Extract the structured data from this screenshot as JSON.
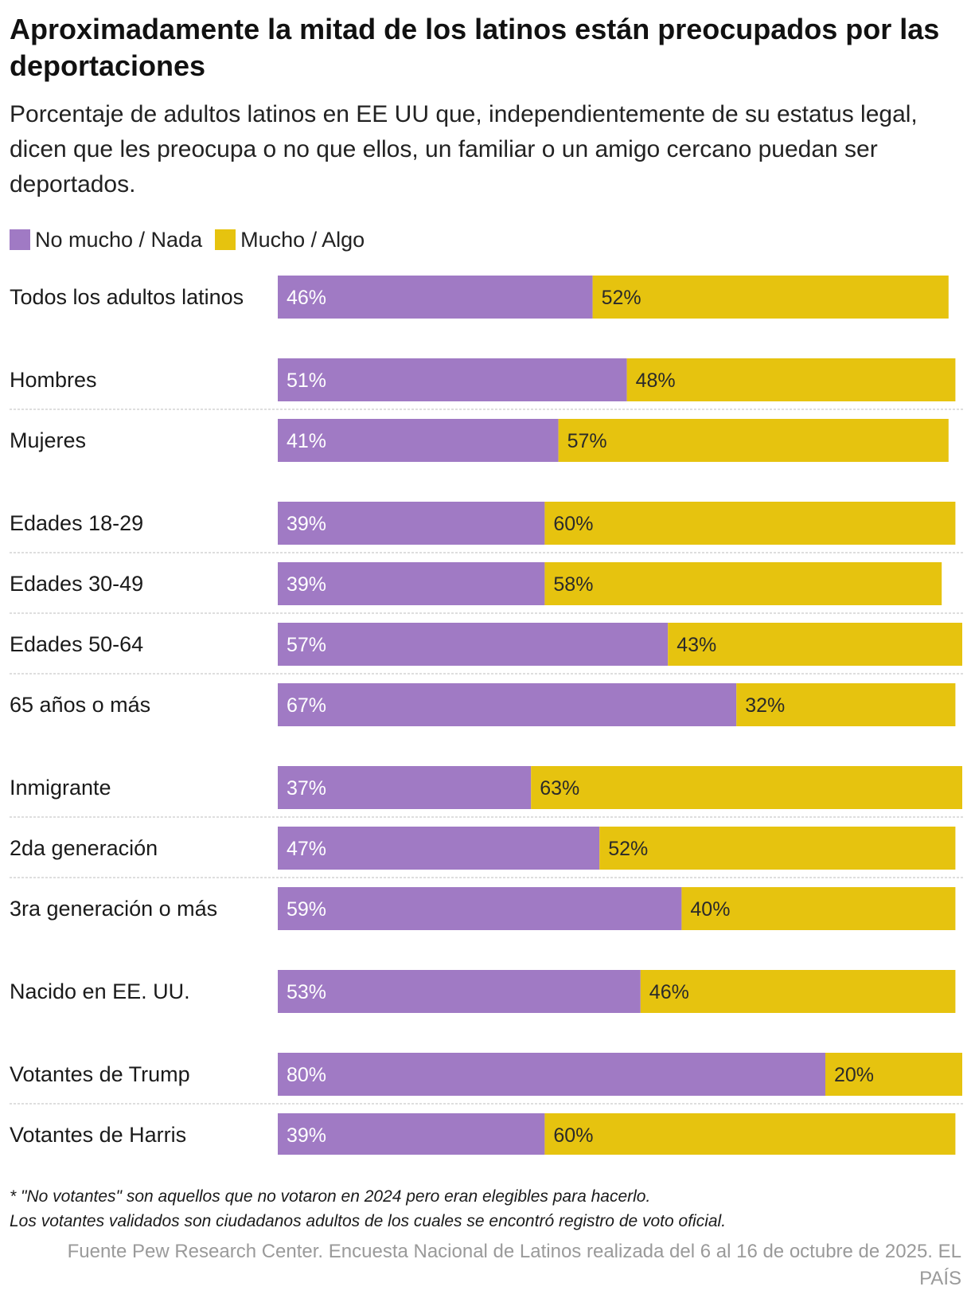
{
  "chart_data": {
    "type": "bar",
    "orientation": "horizontal",
    "stacked": true,
    "title": "Aproximadamente la mitad de los latinos están preocupados por las deportaciones",
    "subtitle": "Porcentaje de adultos latinos en EE UU que, independientemente de su estatus legal, dicen que les preocupa o no que ellos, un familiar o un amigo cercano puedan ser deportados.",
    "legend": [
      {
        "name": "No mucho / Nada",
        "color": "#a07ac4"
      },
      {
        "name": "Mucho / Algo",
        "color": "#e6c30f"
      }
    ],
    "xlim": [
      0,
      100
    ],
    "categories": [
      "Todos los adultos latinos",
      "Hombres",
      "Mujeres",
      "Edades 18-29",
      "Edades 30-49",
      "Edades 50-64",
      "65 años o más",
      "Inmigrante",
      "2da generación",
      "3ra generación o más",
      "Nacido en EE. UU.",
      "Votantes de Trump",
      "Votantes de Harris"
    ],
    "groups": [
      0,
      1,
      1,
      2,
      2,
      2,
      2,
      3,
      3,
      3,
      4,
      5,
      5
    ],
    "series": [
      {
        "name": "No mucho / Nada",
        "color": "#a07ac4",
        "values": [
          46,
          51,
          41,
          39,
          39,
          57,
          67,
          37,
          47,
          59,
          53,
          80,
          39
        ]
      },
      {
        "name": "Mucho / Algo",
        "color": "#e6c30f",
        "values": [
          52,
          48,
          57,
          60,
          58,
          43,
          32,
          63,
          52,
          40,
          46,
          20,
          60
        ]
      }
    ],
    "label_suffix": "%"
  },
  "notes": [
    "* \"No votantes\" son aquellos que no votaron en 2024 pero eran elegibles para hacerlo.",
    "Los votantes validados son ciudadanos adultos de los cuales se encontró registro de voto oficial."
  ],
  "source": "Fuente Pew Research Center. Encuesta Nacional de Latinos realizada del 6 al 16 de octubre de 2025. EL PAÍS"
}
